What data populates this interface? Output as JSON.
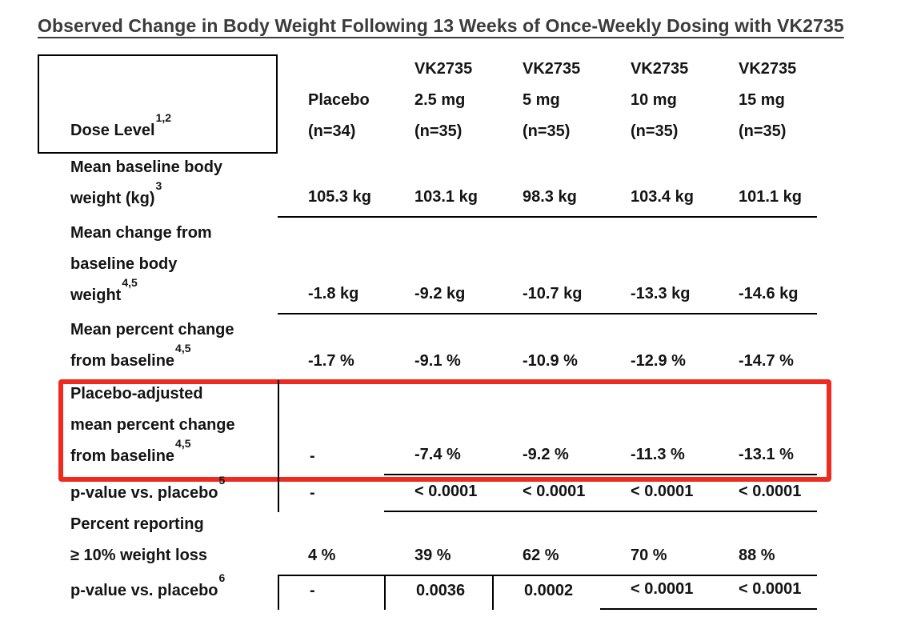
{
  "title": "Observed Change in Body Weight Following 13 Weeks of Once-Weekly Dosing with VK2735",
  "colors": {
    "title_text": "#3b3b3b",
    "table_text": "#141414",
    "rule_black": "#000000",
    "highlight_red": "#ee2b1e",
    "background": "#ffffff"
  },
  "table": {
    "corner": {
      "label": "Dose Level",
      "sup": "1,2"
    },
    "columns": [
      {
        "lines": [
          "Placebo",
          "(n=34)"
        ]
      },
      {
        "lines": [
          "VK2735",
          "2.5 mg",
          "(n=35)"
        ]
      },
      {
        "lines": [
          "VK2735",
          "5 mg",
          "(n=35)"
        ]
      },
      {
        "lines": [
          "VK2735",
          "10 mg",
          "(n=35)"
        ]
      },
      {
        "lines": [
          "VK2735",
          "15 mg",
          "(n=35)"
        ]
      }
    ],
    "rows": [
      {
        "label_lines": [
          "Mean baseline body",
          "weight (kg)"
        ],
        "sup": "3",
        "values": [
          "105.3 kg",
          "103.1 kg",
          "98.3 kg",
          "103.4 kg",
          "101.1 kg"
        ]
      },
      {
        "label_lines": [
          "Mean change from",
          "baseline body",
          "weight"
        ],
        "sup": "4,5",
        "values": [
          "-1.8 kg",
          "-9.2 kg",
          "-10.7 kg",
          "-13.3 kg",
          "-14.6 kg"
        ]
      },
      {
        "label_lines": [
          "Mean percent change",
          "from baseline"
        ],
        "sup": "4,5",
        "values": [
          "-1.7 %",
          "-9.1 %",
          "-10.9 %",
          "-12.9 %",
          "-14.7 %"
        ]
      },
      {
        "label_lines": [
          "Placebo-adjusted",
          "mean percent change",
          "from baseline"
        ],
        "sup": "4,5",
        "values": [
          "-",
          "-7.4 %",
          "-9.2 %",
          "-11.3 %",
          "-13.1 %"
        ],
        "highlighted": true
      },
      {
        "label_lines": [
          "p-value vs. placebo"
        ],
        "sup": "5",
        "values": [
          "-",
          "< 0.0001",
          "< 0.0001",
          "< 0.0001",
          "< 0.0001"
        ]
      },
      {
        "label_lines": [
          "Percent reporting",
          "≥ 10% weight loss"
        ],
        "sup": "",
        "values": [
          "4 %",
          "39 %",
          "62 %",
          "70 %",
          "88 %"
        ]
      },
      {
        "label_lines": [
          "p-value vs. placebo"
        ],
        "sup": "6",
        "values": [
          "-",
          "0.0036",
          "0.0002",
          "< 0.0001",
          "< 0.0001"
        ]
      }
    ]
  },
  "chart_data": {
    "type": "table",
    "title": "Observed Change in Body Weight Following 13 Weeks of Once-Weekly Dosing with VK2735",
    "columns": [
      "Dose Level",
      "Placebo (n=34)",
      "VK2735 2.5 mg (n=35)",
      "VK2735 5 mg (n=35)",
      "VK2735 10 mg (n=35)",
      "VK2735 15 mg (n=35)"
    ],
    "rows": [
      [
        "Mean baseline body weight (kg)",
        "105.3 kg",
        "103.1 kg",
        "98.3 kg",
        "103.4 kg",
        "101.1 kg"
      ],
      [
        "Mean change from baseline body weight",
        "-1.8 kg",
        "-9.2 kg",
        "-10.7 kg",
        "-13.3 kg",
        "-14.6 kg"
      ],
      [
        "Mean percent change from baseline",
        "-1.7 %",
        "-9.1 %",
        "-10.9 %",
        "-12.9 %",
        "-14.7 %"
      ],
      [
        "Placebo-adjusted mean percent change from baseline",
        "-",
        "-7.4 %",
        "-9.2 %",
        "-11.3 %",
        "-13.1 %"
      ],
      [
        "p-value vs. placebo",
        "-",
        "< 0.0001",
        "< 0.0001",
        "< 0.0001",
        "< 0.0001"
      ],
      [
        "Percent reporting ≥ 10% weight loss",
        "4 %",
        "39 %",
        "62 %",
        "70 %",
        "88 %"
      ],
      [
        "p-value vs. placebo",
        "-",
        "0.0036",
        "0.0002",
        "< 0.0001",
        "< 0.0001"
      ]
    ],
    "annotations": [
      "Red rectangle highlights the 'Placebo-adjusted mean percent change from baseline' row"
    ],
    "footnote_markers": [
      "1,2",
      "3",
      "4,5",
      "5",
      "6"
    ]
  }
}
